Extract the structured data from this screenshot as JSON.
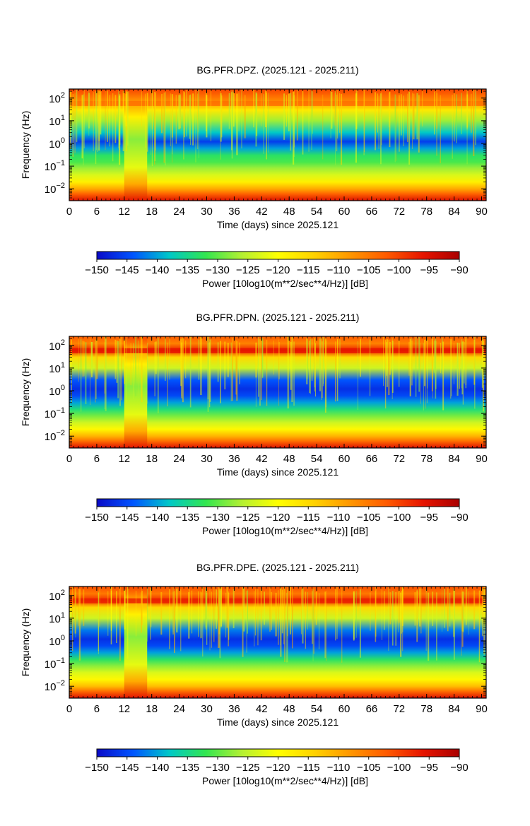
{
  "colorbar": {
    "label": "Power [10log10(m**2/sec**4/Hz)] [dB]",
    "vmin": -150,
    "vmax": -90,
    "ticks": [
      -150,
      -145,
      -140,
      -135,
      -130,
      -125,
      -120,
      -115,
      -110,
      -105,
      -100,
      -95,
      -90
    ],
    "colors": [
      "#0a0ac8",
      "#0055ff",
      "#00c8c8",
      "#32e650",
      "#b4f032",
      "#ffff00",
      "#ffd200",
      "#ff9600",
      "#ff5a00",
      "#e61400",
      "#aa0000"
    ]
  },
  "chart_data": [
    {
      "type": "heatmap",
      "title": "BG.PFR.DPZ. (2025.121 - 2025.211)",
      "xlabel": "Time (days) since 2025.121",
      "ylabel": "Frequency (Hz)",
      "xlim": [
        0,
        91
      ],
      "ylim": [
        0.003,
        250
      ],
      "yscale": "log",
      "x_ticks": [
        0,
        6,
        12,
        18,
        24,
        30,
        36,
        42,
        48,
        54,
        60,
        66,
        72,
        78,
        84,
        90
      ],
      "y_ticks": [
        {
          "value": 0.01,
          "base": "10",
          "exp": "−2"
        },
        {
          "value": 0.1,
          "base": "10",
          "exp": "−1"
        },
        {
          "value": 1,
          "base": "10",
          "exp": "0"
        },
        {
          "value": 10,
          "base": "10",
          "exp": "1"
        },
        {
          "value": 100,
          "base": "10",
          "exp": "2"
        }
      ],
      "spectral_bands_db": [
        {
          "freq": 0.003,
          "power": -95
        },
        {
          "freq": 0.006,
          "power": -103
        },
        {
          "freq": 0.01,
          "power": -110
        },
        {
          "freq": 0.02,
          "power": -118
        },
        {
          "freq": 0.04,
          "power": -123
        },
        {
          "freq": 0.08,
          "power": -127
        },
        {
          "freq": 0.15,
          "power": -131
        },
        {
          "freq": 0.3,
          "power": -133
        },
        {
          "freq": 0.6,
          "power": -140
        },
        {
          "freq": 1.2,
          "power": -146
        },
        {
          "freq": 3,
          "power": -138
        },
        {
          "freq": 10,
          "power": -127
        },
        {
          "freq": 30,
          "power": -117
        },
        {
          "freq": 60,
          "power": -108
        },
        {
          "freq": 120,
          "power": -104
        },
        {
          "freq": 250,
          "power": -100
        }
      ],
      "line_60hz_power_db": -104,
      "gap_interval_days": [
        12,
        17
      ],
      "gap_power_db": -122
    },
    {
      "type": "heatmap",
      "title": "BG.PFR.DPN. (2025.121 - 2025.211)",
      "xlabel": "Time (days) since 2025.121",
      "ylabel": "Frequency (Hz)",
      "xlim": [
        0,
        91
      ],
      "ylim": [
        0.003,
        250
      ],
      "yscale": "log",
      "x_ticks": [
        0,
        6,
        12,
        18,
        24,
        30,
        36,
        42,
        48,
        54,
        60,
        66,
        72,
        78,
        84,
        90
      ],
      "y_ticks": [
        {
          "value": 0.01,
          "base": "10",
          "exp": "−2"
        },
        {
          "value": 0.1,
          "base": "10",
          "exp": "−1"
        },
        {
          "value": 1,
          "base": "10",
          "exp": "0"
        },
        {
          "value": 10,
          "base": "10",
          "exp": "1"
        },
        {
          "value": 100,
          "base": "10",
          "exp": "2"
        }
      ],
      "spectral_bands_db": [
        {
          "freq": 0.003,
          "power": -95
        },
        {
          "freq": 0.006,
          "power": -104
        },
        {
          "freq": 0.01,
          "power": -111
        },
        {
          "freq": 0.02,
          "power": -119
        },
        {
          "freq": 0.04,
          "power": -124
        },
        {
          "freq": 0.08,
          "power": -129
        },
        {
          "freq": 0.15,
          "power": -134
        },
        {
          "freq": 0.3,
          "power": -140
        },
        {
          "freq": 0.6,
          "power": -145
        },
        {
          "freq": 1.2,
          "power": -147
        },
        {
          "freq": 3,
          "power": -144
        },
        {
          "freq": 10,
          "power": -124
        },
        {
          "freq": 30,
          "power": -115
        },
        {
          "freq": 60,
          "power": -97
        },
        {
          "freq": 120,
          "power": -106
        },
        {
          "freq": 250,
          "power": -102
        }
      ],
      "line_60hz_power_db": -96,
      "gap_interval_days": [
        12,
        17
      ],
      "gap_power_db": -122
    },
    {
      "type": "heatmap",
      "title": "BG.PFR.DPE. (2025.121 - 2025.211)",
      "xlabel": "Time (days) since 2025.121",
      "ylabel": "Frequency (Hz)",
      "xlim": [
        0,
        91
      ],
      "ylim": [
        0.003,
        250
      ],
      "yscale": "log",
      "x_ticks": [
        0,
        6,
        12,
        18,
        24,
        30,
        36,
        42,
        48,
        54,
        60,
        66,
        72,
        78,
        84,
        90
      ],
      "y_ticks": [
        {
          "value": 0.01,
          "base": "10",
          "exp": "−2"
        },
        {
          "value": 0.1,
          "base": "10",
          "exp": "−1"
        },
        {
          "value": 1,
          "base": "10",
          "exp": "0"
        },
        {
          "value": 10,
          "base": "10",
          "exp": "1"
        },
        {
          "value": 100,
          "base": "10",
          "exp": "2"
        }
      ],
      "spectral_bands_db": [
        {
          "freq": 0.003,
          "power": -95
        },
        {
          "freq": 0.006,
          "power": -104
        },
        {
          "freq": 0.01,
          "power": -112
        },
        {
          "freq": 0.02,
          "power": -119
        },
        {
          "freq": 0.04,
          "power": -123
        },
        {
          "freq": 0.08,
          "power": -128
        },
        {
          "freq": 0.15,
          "power": -133
        },
        {
          "freq": 0.3,
          "power": -140
        },
        {
          "freq": 0.6,
          "power": -145
        },
        {
          "freq": 1.2,
          "power": -147
        },
        {
          "freq": 3,
          "power": -142
        },
        {
          "freq": 10,
          "power": -124
        },
        {
          "freq": 30,
          "power": -115
        },
        {
          "freq": 60,
          "power": -98
        },
        {
          "freq": 120,
          "power": -105
        },
        {
          "freq": 250,
          "power": -101
        }
      ],
      "line_60hz_power_db": -97,
      "gap_interval_days": [
        12,
        17
      ],
      "gap_power_db": -122
    }
  ]
}
